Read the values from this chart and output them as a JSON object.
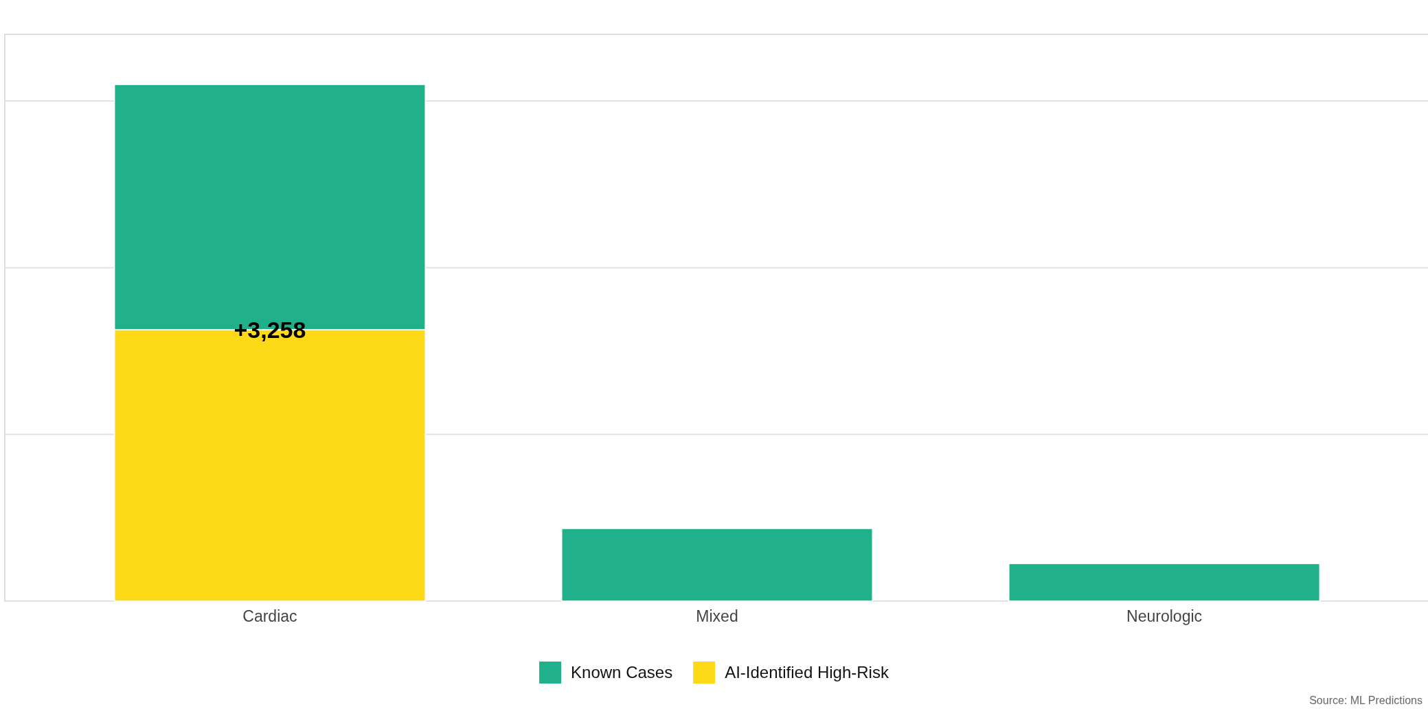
{
  "chart_data": {
    "type": "bar",
    "stacked": true,
    "categories": [
      "Cardiac",
      "Mixed",
      "Neurologic"
    ],
    "series": [
      {
        "name": "AI-Identified High-Risk",
        "color": "#fdd918",
        "values": [
          3258,
          0,
          0
        ],
        "value_labels": [
          "+3,258",
          null,
          null
        ]
      },
      {
        "name": "Known Cases",
        "color": "#20b08b",
        "values": [
          2940,
          870,
          450
        ]
      }
    ],
    "ylim": [
      0,
      6800
    ],
    "yticks": [
      {
        "value": 0,
        "label": null
      },
      {
        "value": 2000,
        "label": null
      },
      {
        "value": 4000,
        "label": null
      },
      {
        "value": 6000,
        "label": null
      }
    ],
    "grid": "y",
    "legend": "bottom",
    "annotations": [
      "Source: ML Predictions"
    ]
  }
}
